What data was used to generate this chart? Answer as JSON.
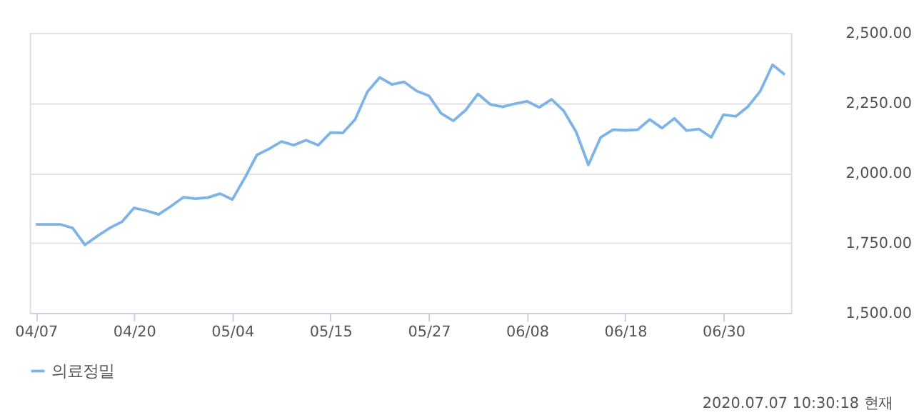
{
  "chart_data": {
    "type": "line",
    "categories": [
      "04/07",
      null,
      null,
      null,
      null,
      null,
      null,
      null,
      "04/20",
      null,
      null,
      null,
      null,
      null,
      null,
      null,
      "05/04",
      null,
      null,
      null,
      null,
      null,
      null,
      null,
      "05/15",
      null,
      null,
      null,
      null,
      null,
      null,
      null,
      "05/27",
      null,
      null,
      null,
      null,
      null,
      null,
      null,
      "06/08",
      null,
      null,
      null,
      null,
      null,
      null,
      null,
      "06/18",
      null,
      null,
      null,
      null,
      null,
      null,
      null,
      "06/30",
      null,
      null,
      null,
      null,
      null
    ],
    "series": [
      {
        "name": "의료정밀",
        "color": "#7eb3e8",
        "values": [
          1816,
          1816,
          1816,
          1803,
          1743,
          1774,
          1803,
          1825,
          1875,
          1865,
          1852,
          1881,
          1913,
          1908,
          1912,
          1926,
          1905,
          1981,
          2064,
          2086,
          2112,
          2099,
          2117,
          2099,
          2144,
          2143,
          2191,
          2290,
          2341,
          2316,
          2325,
          2293,
          2276,
          2213,
          2186,
          2224,
          2282,
          2245,
          2236,
          2247,
          2256,
          2234,
          2263,
          2221,
          2147,
          2029,
          2127,
          2154,
          2152,
          2154,
          2191,
          2160,
          2195,
          2151,
          2157,
          2127,
          2208,
          2202,
          2237,
          2292,
          2386,
          2351
        ]
      }
    ],
    "ylim": [
      1500,
      2500
    ],
    "yticks": [
      {
        "value": 1500,
        "label": "1,500.00"
      },
      {
        "value": 1750,
        "label": "1,750.00"
      },
      {
        "value": 2000,
        "label": "2,000.00"
      },
      {
        "value": 2250,
        "label": "2,250.00"
      },
      {
        "value": 2500,
        "label": "2,500.00"
      }
    ],
    "grid": "y",
    "legend": "bottom",
    "marker": "none",
    "line_style": "solid",
    "annotations": [
      "2020.07.07 10:30:18 현재"
    ]
  }
}
